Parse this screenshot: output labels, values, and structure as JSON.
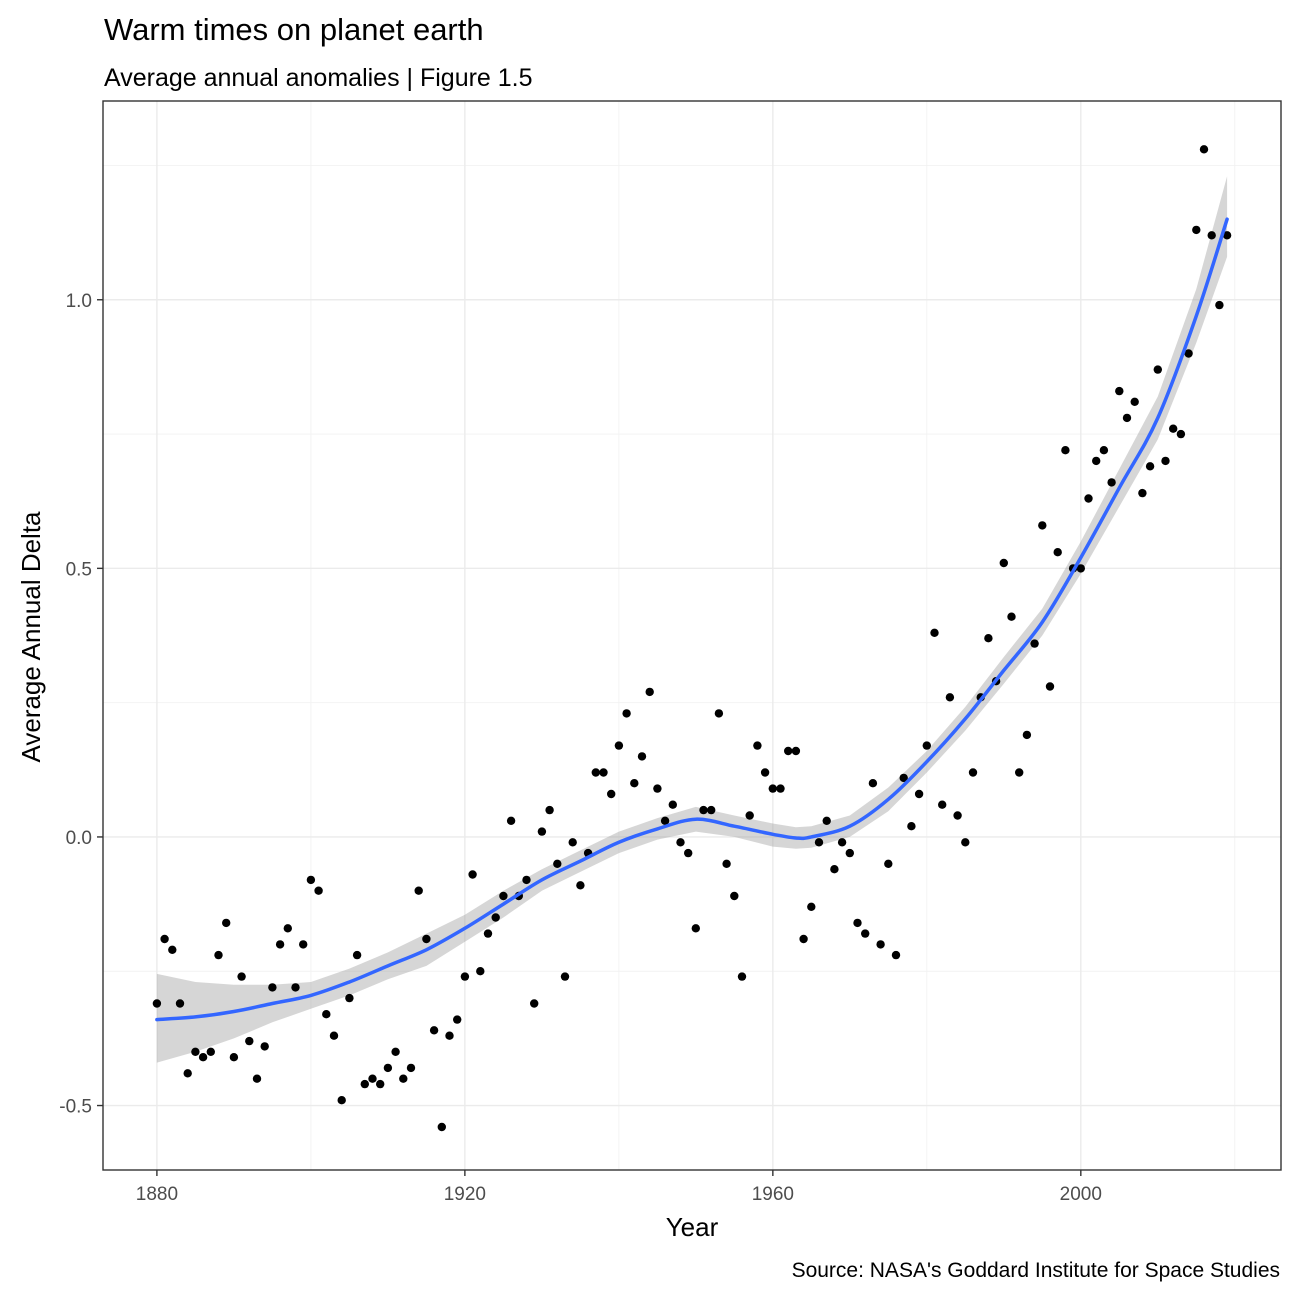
{
  "chart_data": {
    "type": "scatter",
    "title": "Warm times on planet earth",
    "subtitle": "Average annual anomalies | Figure 1.5",
    "xlabel": "Year",
    "ylabel": "Average Annual Delta",
    "caption": "Source: NASA's Goddard Institute for Space Studies",
    "xlim": [
      1873,
      2026
    ],
    "ylim": [
      -0.62,
      1.37
    ],
    "x_ticks": [
      1880,
      1920,
      1960,
      2000
    ],
    "y_ticks": [
      -0.5,
      0.0,
      0.5,
      1.0
    ],
    "x_tick_labels": [
      "1880",
      "1920",
      "1960",
      "2000"
    ],
    "y_tick_labels": [
      "-0.5",
      "0.0",
      "0.5",
      "1.0"
    ],
    "grid": true,
    "theme": "bw",
    "colors": {
      "points": "#000000",
      "smooth_line": "#3366FF",
      "confidence_band": "#999999",
      "panel_border": "#333333",
      "grid": "#ebebeb"
    },
    "points": {
      "x": [
        1880,
        1881,
        1882,
        1883,
        1884,
        1885,
        1886,
        1887,
        1888,
        1889,
        1890,
        1891,
        1892,
        1893,
        1894,
        1895,
        1896,
        1897,
        1898,
        1899,
        1900,
        1901,
        1902,
        1903,
        1904,
        1905,
        1906,
        1907,
        1908,
        1909,
        1910,
        1911,
        1912,
        1913,
        1914,
        1915,
        1916,
        1917,
        1918,
        1919,
        1920,
        1921,
        1922,
        1923,
        1924,
        1925,
        1926,
        1927,
        1928,
        1929,
        1930,
        1931,
        1932,
        1933,
        1934,
        1935,
        1936,
        1937,
        1938,
        1939,
        1940,
        1941,
        1942,
        1943,
        1944,
        1945,
        1946,
        1947,
        1948,
        1949,
        1950,
        1951,
        1952,
        1953,
        1954,
        1955,
        1956,
        1957,
        1958,
        1959,
        1960,
        1961,
        1962,
        1963,
        1964,
        1965,
        1966,
        1967,
        1968,
        1969,
        1970,
        1971,
        1972,
        1973,
        1974,
        1975,
        1976,
        1977,
        1978,
        1979,
        1980,
        1981,
        1982,
        1983,
        1984,
        1985,
        1986,
        1987,
        1988,
        1989,
        1990,
        1991,
        1992,
        1993,
        1994,
        1995,
        1996,
        1997,
        1998,
        1999,
        2000,
        2001,
        2002,
        2003,
        2004,
        2005,
        2006,
        2007,
        2008,
        2009,
        2010,
        2011,
        2012,
        2013,
        2014,
        2015,
        2016,
        2017,
        2018,
        2019
      ],
      "y": [
        -0.31,
        -0.19,
        -0.21,
        -0.31,
        -0.44,
        -0.4,
        -0.41,
        -0.4,
        -0.22,
        -0.16,
        -0.41,
        -0.26,
        -0.38,
        -0.45,
        -0.39,
        -0.28,
        -0.2,
        -0.17,
        -0.28,
        -0.2,
        -0.08,
        -0.1,
        -0.33,
        -0.37,
        -0.49,
        -0.3,
        -0.22,
        -0.46,
        -0.45,
        -0.46,
        -0.43,
        -0.4,
        -0.45,
        -0.43,
        -0.1,
        -0.19,
        -0.36,
        -0.54,
        -0.37,
        -0.34,
        -0.26,
        -0.07,
        -0.25,
        -0.18,
        -0.15,
        -0.11,
        0.03,
        -0.11,
        -0.08,
        -0.31,
        0.01,
        0.05,
        -0.05,
        -0.26,
        -0.01,
        -0.09,
        -0.03,
        0.12,
        0.12,
        0.08,
        0.17,
        0.23,
        0.1,
        0.15,
        0.27,
        0.09,
        0.03,
        0.06,
        -0.01,
        -0.03,
        -0.17,
        0.05,
        0.05,
        0.23,
        -0.05,
        -0.11,
        -0.26,
        0.04,
        0.17,
        0.12,
        0.09,
        0.09,
        0.16,
        0.16,
        -0.19,
        -0.13,
        -0.01,
        0.03,
        -0.06,
        -0.01,
        -0.03,
        -0.16,
        -0.18,
        0.1,
        -0.2,
        -0.05,
        -0.22,
        0.11,
        0.02,
        0.08,
        0.17,
        0.38,
        0.06,
        0.26,
        0.04,
        -0.01,
        0.12,
        0.26,
        0.37,
        0.29,
        0.51,
        0.41,
        0.12,
        0.19,
        0.36,
        0.58,
        0.28,
        0.53,
        0.72,
        0.5,
        0.5,
        0.63,
        0.7,
        0.72,
        0.66,
        0.83,
        0.78,
        0.81,
        0.64,
        0.69,
        0.87,
        0.7,
        0.76,
        0.75,
        0.9,
        1.13,
        1.28,
        1.12,
        0.99,
        1.12
      ]
    },
    "smooth": {
      "x": [
        1880,
        1885,
        1890,
        1895,
        1900,
        1905,
        1910,
        1915,
        1920,
        1925,
        1930,
        1935,
        1940,
        1945,
        1950,
        1955,
        1960,
        1963,
        1965,
        1970,
        1975,
        1980,
        1985,
        1990,
        1995,
        2000,
        2005,
        2010,
        2015,
        2019
      ],
      "y": [
        -0.34,
        -0.335,
        -0.325,
        -0.31,
        -0.295,
        -0.27,
        -0.24,
        -0.21,
        -0.17,
        -0.125,
        -0.08,
        -0.045,
        -0.01,
        0.015,
        0.033,
        0.02,
        0.005,
        -0.002,
        0.0,
        0.02,
        0.07,
        0.14,
        0.22,
        0.31,
        0.4,
        0.52,
        0.65,
        0.78,
        0.97,
        1.15
      ],
      "lower": [
        -0.42,
        -0.4,
        -0.375,
        -0.345,
        -0.32,
        -0.295,
        -0.265,
        -0.24,
        -0.195,
        -0.15,
        -0.1,
        -0.065,
        -0.03,
        -0.005,
        0.01,
        0.0,
        -0.018,
        -0.022,
        -0.02,
        0.0,
        0.048,
        0.12,
        0.198,
        0.285,
        0.375,
        0.49,
        0.615,
        0.74,
        0.92,
        1.08
      ],
      "upper": [
        -0.255,
        -0.27,
        -0.275,
        -0.275,
        -0.27,
        -0.245,
        -0.215,
        -0.18,
        -0.145,
        -0.1,
        -0.06,
        -0.025,
        0.01,
        0.035,
        0.056,
        0.04,
        0.025,
        0.018,
        0.02,
        0.04,
        0.092,
        0.16,
        0.242,
        0.335,
        0.425,
        0.55,
        0.685,
        0.82,
        1.02,
        1.23
      ]
    }
  }
}
